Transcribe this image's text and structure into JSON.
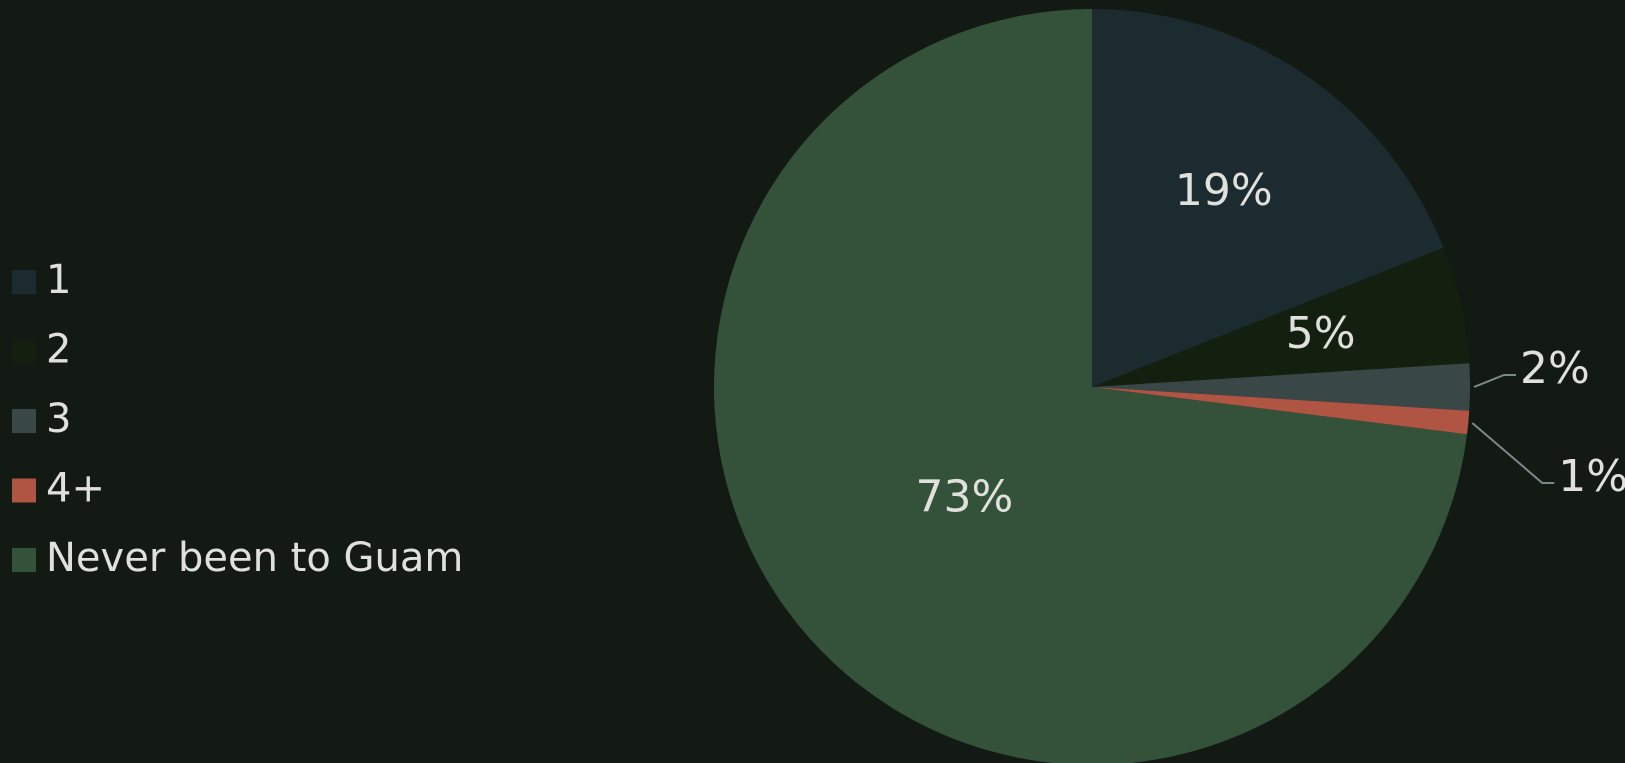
{
  "chart_data": {
    "type": "pie",
    "categories": [
      "1",
      "2",
      "3",
      "4+",
      "Never been to Guam"
    ],
    "values": [
      19,
      5,
      2,
      1,
      73
    ],
    "value_labels": [
      "19%",
      "5%",
      "2%",
      "1%",
      "73%"
    ],
    "colors": [
      "#1b2b2f",
      "#13200f",
      "#3a4747",
      "#b05444",
      "#34523a"
    ],
    "legend": "left"
  }
}
